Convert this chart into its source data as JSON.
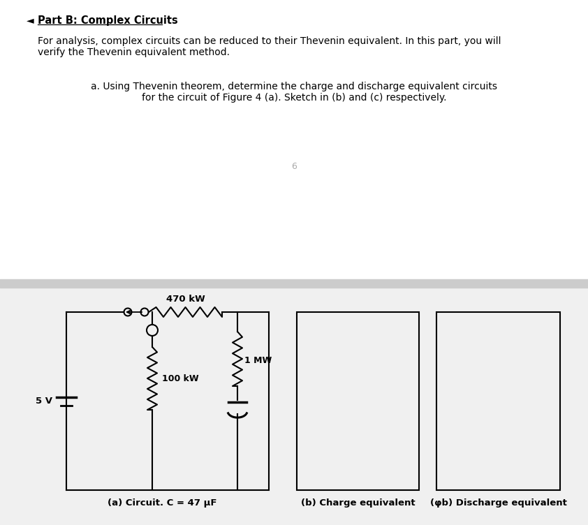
{
  "bg_color": "#ffffff",
  "bottom_bg": "#f0f0f0",
  "divider_color": "#bbbbbb",
  "title": "Part B: Complex Circuits",
  "body_line1": "For analysis, complex circuits can be reduced to their Thevenin equivalent. In this part, you will",
  "body_line2": "verify the Thevenin equivalent method.",
  "question_line1": "a. Using Thevenin theorem, determine the charge and discharge equivalent circuits",
  "question_line2": "for the circuit of Figure 4 (a). Sketch in (b) and (c) respectively.",
  "page_num": "6",
  "label_5v": "5 V",
  "label_470kw": "470 kW",
  "label_100kw": "100 kW",
  "label_1mw": "1 MW",
  "caption_a": "(a) Circuit. C = 47 μF",
  "caption_b": "(b) Charge equivalent",
  "caption_c": "(φb) Discharge equivalent",
  "font_body": 10.0,
  "font_caption": 9.5,
  "font_label": 9.5,
  "lw_circuit": 1.5
}
